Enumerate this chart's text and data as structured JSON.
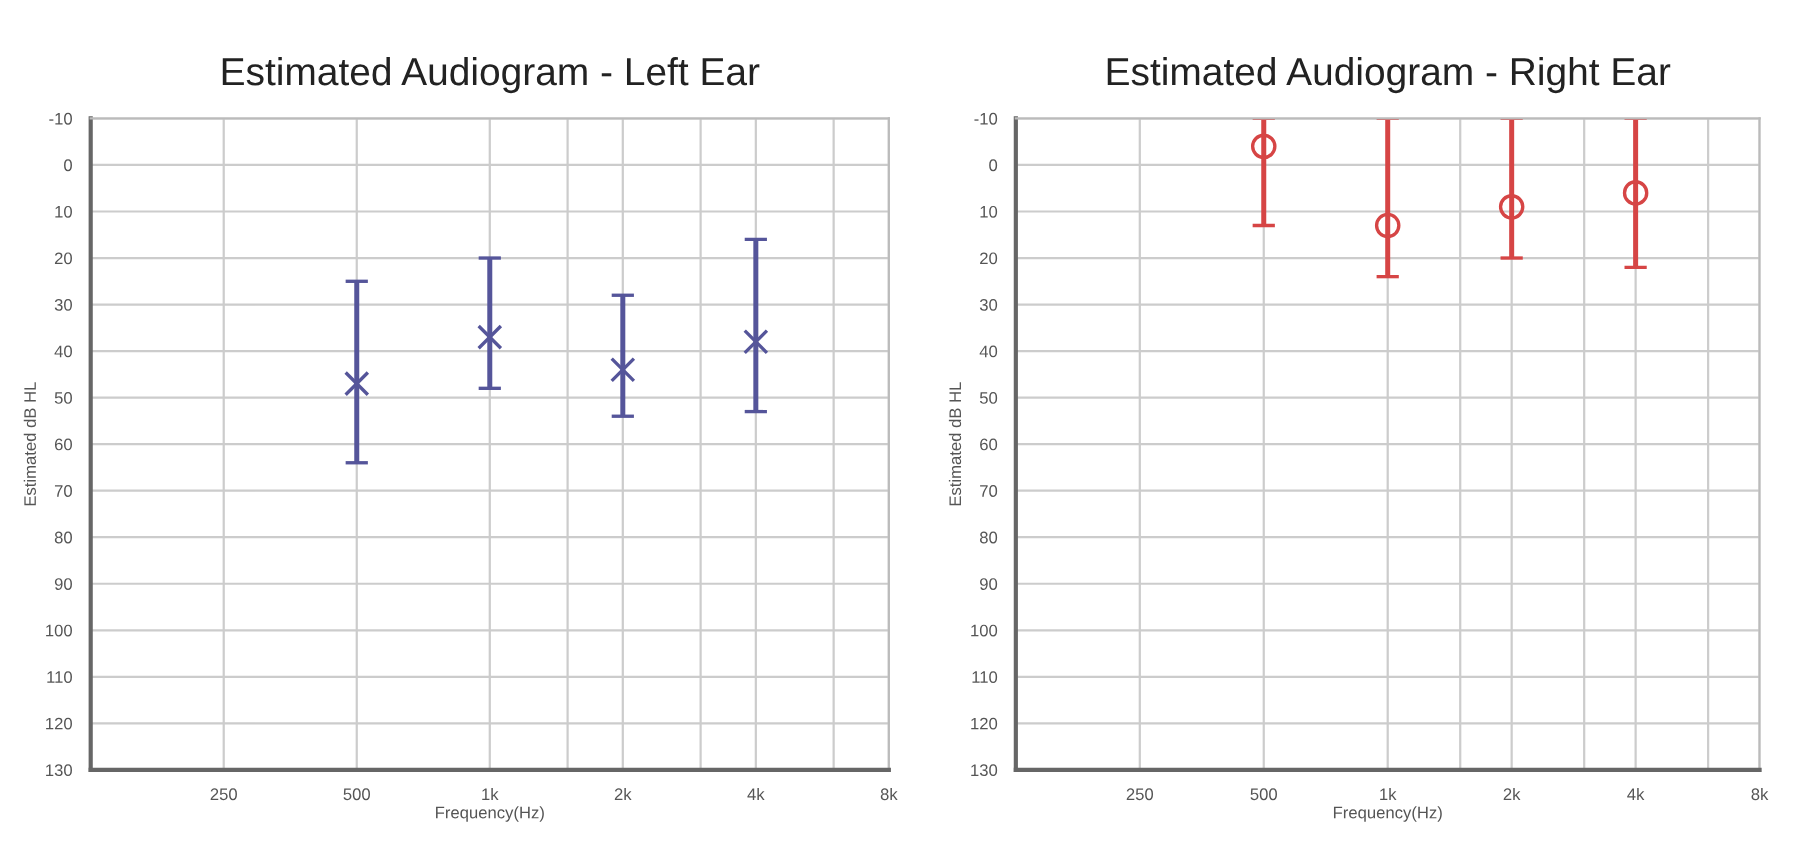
{
  "chart_data": [
    {
      "type": "scatter",
      "title": "Estimated Audiogram - Left Ear",
      "xlabel": "Frequency(Hz)",
      "ylabel": "Estimated dB HL",
      "log": "x",
      "grid": true,
      "marker": "cross",
      "x": [
        500,
        1000,
        2000,
        4000
      ],
      "series": [
        {
          "color": "#55559a",
          "values": [
            47,
            37,
            44,
            38
          ],
          "errors": [
            [
              25,
              64
            ],
            [
              20,
              48
            ],
            [
              28,
              54
            ],
            [
              16,
              53
            ]
          ]
        }
      ],
      "xlim": [
        125,
        8000
      ],
      "xticks": [
        {
          "value": 250,
          "label": "250"
        },
        {
          "value": 500,
          "label": "500"
        },
        {
          "value": 1000,
          "label": "1k"
        },
        {
          "value": 1500,
          "label": null
        },
        {
          "value": 2000,
          "label": "2k"
        },
        {
          "value": 3000,
          "label": null
        },
        {
          "value": 4000,
          "label": "4k"
        },
        {
          "value": 6000,
          "label": null
        },
        {
          "value": 8000,
          "label": "8k"
        }
      ],
      "ylim": [
        130,
        -10
      ],
      "yticks": [
        -10,
        0,
        10,
        20,
        30,
        40,
        50,
        60,
        70,
        80,
        90,
        100,
        110,
        120,
        130
      ]
    },
    {
      "type": "scatter",
      "title": "Estimated Audiogram - Right Ear",
      "xlabel": "Frequency(Hz)",
      "ylabel": "Estimated dB HL",
      "log": "x",
      "grid": true,
      "marker": "circle",
      "x": [
        500,
        1000,
        2000,
        4000
      ],
      "series": [
        {
          "color": "#d64545",
          "values": [
            -4,
            13,
            9,
            6
          ],
          "errors": [
            [
              -10,
              13
            ],
            [
              -10,
              24
            ],
            [
              -10,
              20
            ],
            [
              -10,
              22
            ]
          ]
        }
      ],
      "xlim": [
        125,
        8000
      ],
      "xticks": [
        {
          "value": 250,
          "label": "250"
        },
        {
          "value": 500,
          "label": "500"
        },
        {
          "value": 1000,
          "label": "1k"
        },
        {
          "value": 1500,
          "label": null
        },
        {
          "value": 2000,
          "label": "2k"
        },
        {
          "value": 3000,
          "label": null
        },
        {
          "value": 4000,
          "label": "4k"
        },
        {
          "value": 6000,
          "label": null
        },
        {
          "value": 8000,
          "label": "8k"
        }
      ],
      "ylim": [
        130,
        -10
      ],
      "yticks": [
        -10,
        0,
        10,
        20,
        30,
        40,
        50,
        60,
        70,
        80,
        90,
        100,
        110,
        120,
        130
      ]
    }
  ]
}
